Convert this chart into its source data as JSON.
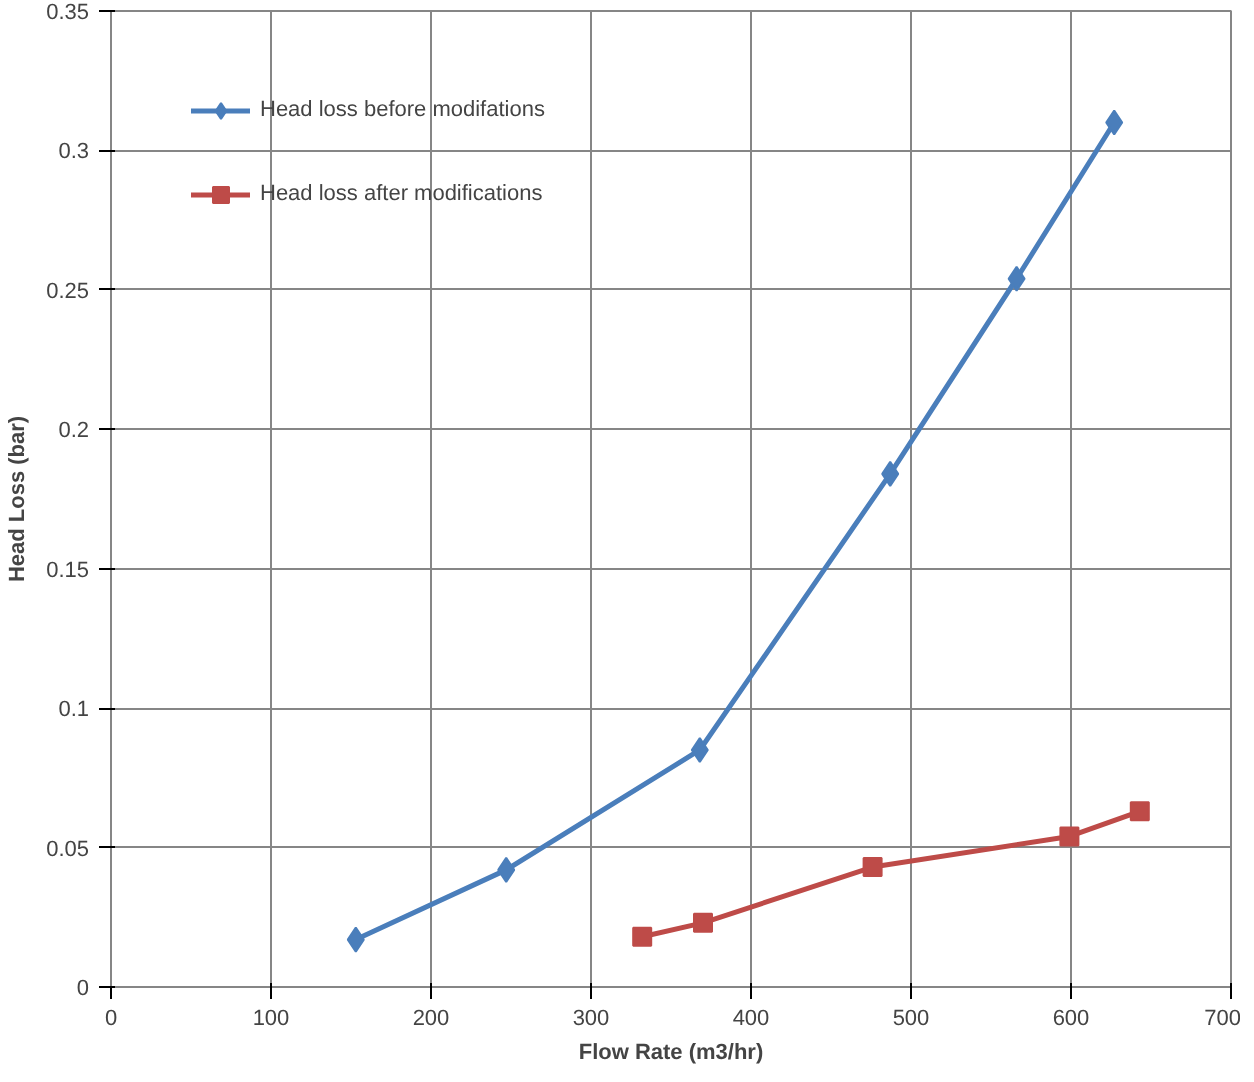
{
  "chart_data": {
    "type": "line",
    "xlabel": "Flow Rate (m3/hr)",
    "ylabel": "Head Loss (bar)",
    "xlim": [
      0,
      700
    ],
    "xticks": [
      0,
      100,
      200,
      300,
      400,
      500,
      600,
      700
    ],
    "ylim": [
      0,
      0.35
    ],
    "yticks": [
      0,
      0.05,
      0.1,
      0.15,
      0.2,
      0.25,
      0.3,
      0.35
    ],
    "grid": true,
    "legend": "top left",
    "series": [
      {
        "name": "Head loss before modifations",
        "color": "#4a7ebb",
        "marker": "diamond",
        "x": [
          153,
          247,
          368,
          487,
          566,
          627
        ],
        "values": [
          0.017,
          0.042,
          0.085,
          0.184,
          0.254,
          0.31
        ]
      },
      {
        "name": "Head loss after modifications",
        "color": "#be4b48",
        "marker": "square",
        "x": [
          332,
          370,
          476,
          599,
          643
        ],
        "values": [
          0.018,
          0.023,
          0.043,
          0.054,
          0.063
        ]
      }
    ]
  }
}
